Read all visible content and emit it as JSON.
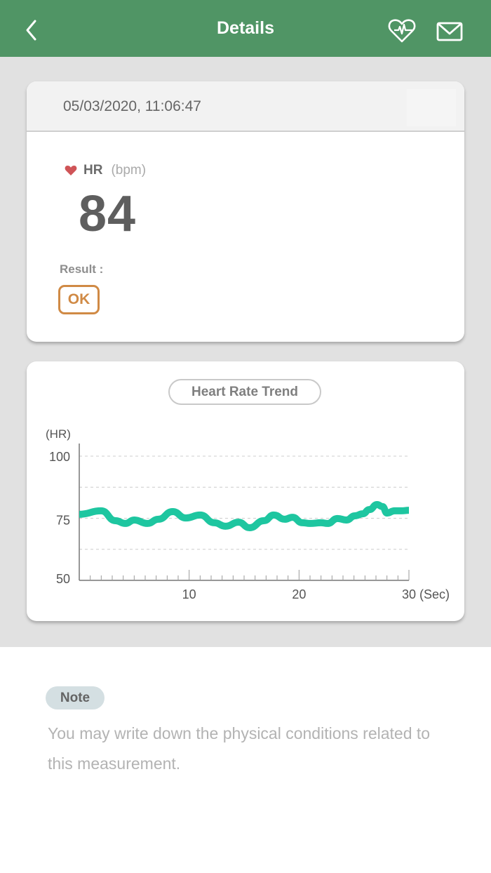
{
  "navbar": {
    "title": "Details",
    "back_icon": "chevron-left-icon",
    "actions": [
      {
        "name": "heart-rate-icon"
      },
      {
        "name": "mail-icon"
      }
    ],
    "color": "#509565"
  },
  "measurement": {
    "datetime": "05/03/2020, 11:06:47",
    "hr_label": "HR",
    "hr_unit": "(bpm)",
    "hr_value": "84",
    "result_label": "Result :",
    "result_value": "OK",
    "result_color": "#d08a45"
  },
  "trend": {
    "title": "Heart Rate Trend"
  },
  "chart_data": {
    "type": "line",
    "title": "Heart Rate Trend",
    "xlabel": "(Sec)",
    "ylabel": "(HR)",
    "xlim": [
      0,
      30
    ],
    "ylim": [
      50,
      100
    ],
    "x_ticks": [
      "10",
      "20",
      "30"
    ],
    "y_ticks": [
      "100",
      "75",
      "50"
    ],
    "grid": "horizontal dashed at 100, 87.5, 75, 62.5",
    "series": [
      {
        "name": "HR",
        "color": "#1ec6a0",
        "x": [
          0,
          2,
          3.3,
          4.2,
          5,
          6.2,
          7.2,
          8.5,
          9.7,
          11,
          12.3,
          13.3,
          14.5,
          15.5,
          16.8,
          17.7,
          18.7,
          19.4,
          20.3,
          21,
          22,
          22.6,
          23.5,
          24.3,
          25.1,
          25.8,
          26.4,
          27.1,
          27.6,
          28,
          28.7,
          29.3,
          30
        ],
        "values": [
          76.6,
          78.0,
          74.0,
          72.9,
          74.3,
          72.9,
          74.6,
          77.7,
          75.1,
          76.3,
          73.2,
          71.8,
          73.4,
          71.2,
          74.0,
          76.3,
          74.6,
          75.4,
          73.2,
          72.9,
          73.2,
          72.9,
          74.9,
          74.3,
          76.0,
          76.8,
          78.5,
          80.5,
          79.7,
          77.1,
          78.0,
          78.0,
          78.2
        ]
      }
    ]
  },
  "note": {
    "tag": "Note",
    "placeholder": "You may write down the physical conditions related to this measurement."
  }
}
